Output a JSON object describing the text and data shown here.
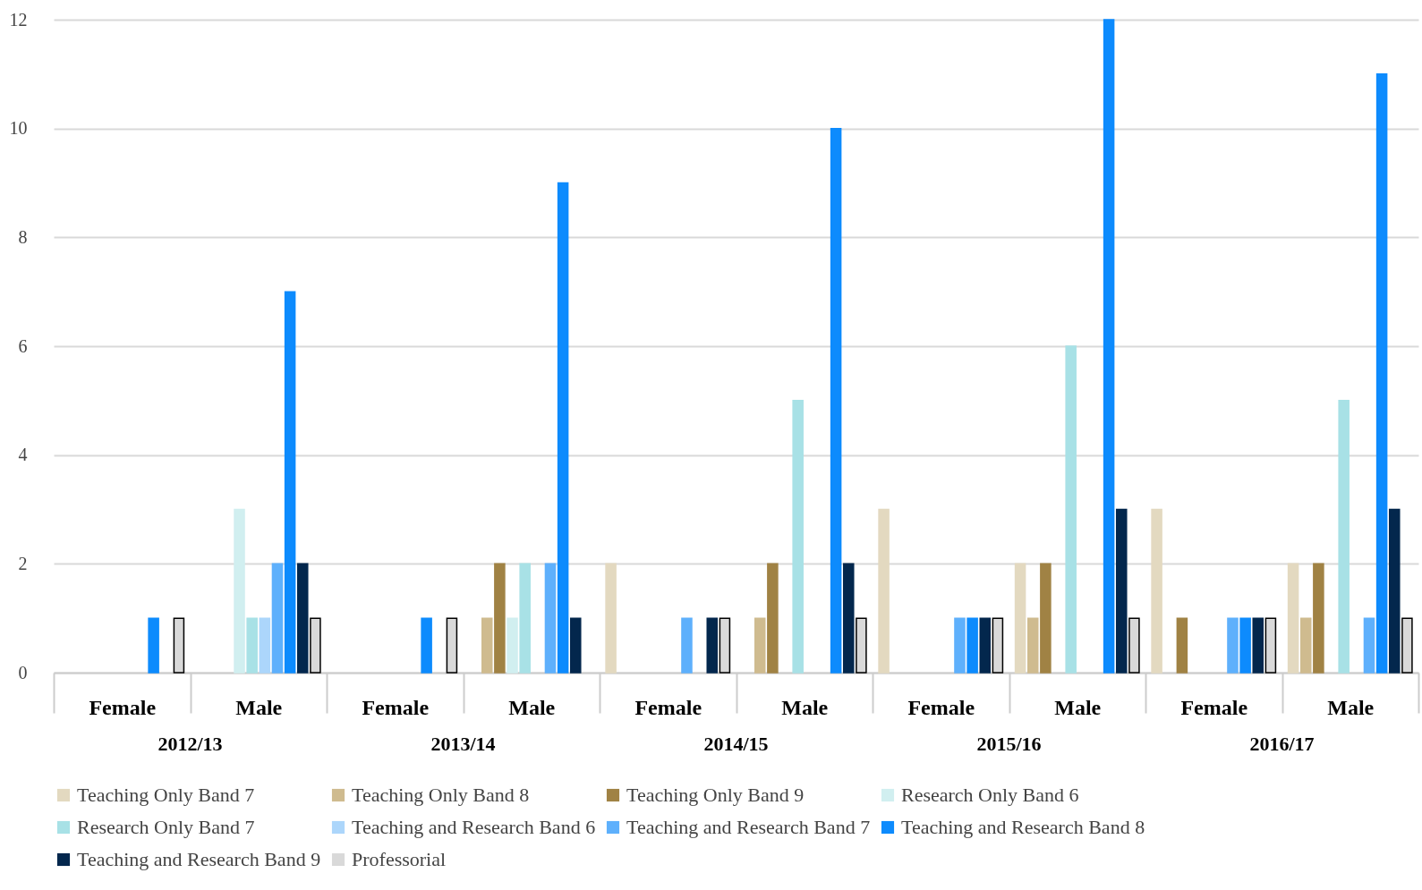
{
  "chart_data": {
    "type": "bar",
    "categories": [
      "Female",
      "Male",
      "Female",
      "Male",
      "Female",
      "Male",
      "Female",
      "Male",
      "Female",
      "Male"
    ],
    "annotations": [
      "2012/13",
      "2013/14",
      "2014/15",
      "2015/16",
      "2016/17"
    ],
    "ylim": [
      0,
      12
    ],
    "yticks": [
      0,
      2,
      4,
      6,
      8,
      10,
      12
    ],
    "grid": "y",
    "legend": "bottom",
    "series": [
      {
        "name": "Teaching Only Band 7",
        "color": "#e3d9c0",
        "values": [
          null,
          null,
          null,
          null,
          2,
          null,
          3,
          2,
          3,
          2
        ]
      },
      {
        "name": "Teaching Only Band 8",
        "color": "#cfbb8f",
        "values": [
          null,
          null,
          null,
          1,
          null,
          1,
          null,
          1,
          null,
          1
        ]
      },
      {
        "name": "Teaching Only Band 9",
        "color": "#a08244",
        "values": [
          null,
          null,
          null,
          2,
          null,
          2,
          null,
          2,
          1,
          2
        ]
      },
      {
        "name": "Research Only Band 6",
        "color": "#d1eff0",
        "values": [
          null,
          3,
          null,
          1,
          null,
          null,
          null,
          null,
          null,
          null
        ]
      },
      {
        "name": "Research Only Band 7",
        "color": "#a8e1e6",
        "values": [
          null,
          1,
          null,
          2,
          null,
          5,
          null,
          6,
          null,
          5
        ]
      },
      {
        "name": "Teaching and Research Band 6",
        "color": "#acd6fb",
        "values": [
          null,
          1,
          null,
          null,
          null,
          null,
          null,
          null,
          null,
          null
        ]
      },
      {
        "name": "Teaching and Research Band 7",
        "color": "#5eb0fc",
        "values": [
          null,
          2,
          null,
          2,
          1,
          null,
          1,
          null,
          1,
          1
        ]
      },
      {
        "name": "Teaching and Research Band 8",
        "color": "#0d8bfd",
        "values": [
          1,
          7,
          1,
          9,
          null,
          10,
          1,
          12,
          1,
          11
        ]
      },
      {
        "name": "Teaching and Research Band 9",
        "color": "#03274d",
        "values": [
          null,
          2,
          null,
          1,
          1,
          2,
          1,
          3,
          1,
          3
        ]
      },
      {
        "name": "Professorial",
        "color": "#d9d9d9",
        "values": [
          1,
          1,
          1,
          null,
          1,
          1,
          1,
          1,
          1,
          1
        ]
      }
    ]
  }
}
